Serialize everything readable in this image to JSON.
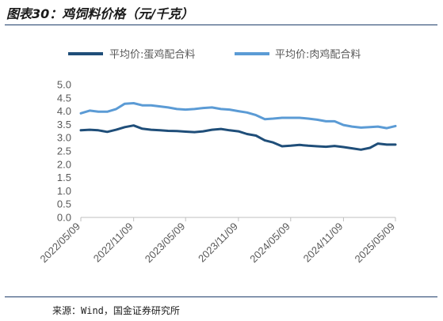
{
  "title": "图表30：鸡饲料价格（元/千克）",
  "source": "来源：Wind，国金证券研究所",
  "colors": {
    "series1": "#1f4e79",
    "series2": "#5b9bd5",
    "axis": "#bfbfbf",
    "text": "#595959"
  },
  "chart_data": {
    "type": "line",
    "title": "",
    "xlabel": "",
    "ylabel": "",
    "ylim": [
      0,
      5
    ],
    "yticks": [
      "5.0",
      "4.5",
      "4.0",
      "3.5",
      "3.0",
      "2.5",
      "2.0",
      "1.5",
      "1.0",
      "0.5",
      "0.0"
    ],
    "xticks": [
      "2022/05/09",
      "2022/11/09",
      "2023/05/09",
      "2023/11/09",
      "2024/05/09",
      "2024/11/09",
      "2025/05/09"
    ],
    "legend_position": "top",
    "series": [
      {
        "name": "平均价:蛋鸡配合料",
        "x": [
          "2022/05/09",
          "2022/06/09",
          "2022/07/09",
          "2022/08/09",
          "2022/09/09",
          "2022/10/09",
          "2022/11/09",
          "2022/12/09",
          "2023/01/09",
          "2023/02/09",
          "2023/03/09",
          "2023/04/09",
          "2023/05/09",
          "2023/06/09",
          "2023/07/09",
          "2023/08/09",
          "2023/09/09",
          "2023/10/09",
          "2023/11/09",
          "2023/12/09",
          "2024/01/09",
          "2024/02/09",
          "2024/03/09",
          "2024/04/09",
          "2024/05/09",
          "2024/06/09",
          "2024/07/09",
          "2024/08/09",
          "2024/09/09",
          "2024/10/09",
          "2024/11/09",
          "2024/12/09",
          "2025/01/09",
          "2025/02/09",
          "2025/03/09",
          "2025/04/09",
          "2025/05/09"
        ],
        "values": [
          3.28,
          3.3,
          3.28,
          3.22,
          3.3,
          3.4,
          3.46,
          3.34,
          3.3,
          3.28,
          3.26,
          3.25,
          3.23,
          3.21,
          3.24,
          3.3,
          3.33,
          3.28,
          3.24,
          3.14,
          3.08,
          2.9,
          2.82,
          2.68,
          2.7,
          2.73,
          2.7,
          2.68,
          2.66,
          2.69,
          2.65,
          2.6,
          2.55,
          2.62,
          2.78,
          2.74,
          2.74
        ]
      },
      {
        "name": "平均价:肉鸡配合料",
        "x": [
          "2022/05/09",
          "2022/06/09",
          "2022/07/09",
          "2022/08/09",
          "2022/09/09",
          "2022/10/09",
          "2022/11/09",
          "2022/12/09",
          "2023/01/09",
          "2023/02/09",
          "2023/03/09",
          "2023/04/09",
          "2023/05/09",
          "2023/06/09",
          "2023/07/09",
          "2023/08/09",
          "2023/09/09",
          "2023/10/09",
          "2023/11/09",
          "2023/12/09",
          "2024/01/09",
          "2024/02/09",
          "2024/03/09",
          "2024/04/09",
          "2024/05/09",
          "2024/06/09",
          "2024/07/09",
          "2024/08/09",
          "2024/09/09",
          "2024/10/09",
          "2024/11/09",
          "2024/12/09",
          "2025/01/09",
          "2025/02/09",
          "2025/03/09",
          "2025/04/09",
          "2025/05/09"
        ],
        "values": [
          3.92,
          4.02,
          3.98,
          3.98,
          4.08,
          4.28,
          4.3,
          4.22,
          4.22,
          4.18,
          4.14,
          4.08,
          4.06,
          4.08,
          4.12,
          4.14,
          4.08,
          4.06,
          4.0,
          3.95,
          3.85,
          3.7,
          3.72,
          3.75,
          3.75,
          3.75,
          3.72,
          3.68,
          3.62,
          3.62,
          3.48,
          3.42,
          3.38,
          3.4,
          3.42,
          3.36,
          3.44
        ]
      }
    ]
  }
}
